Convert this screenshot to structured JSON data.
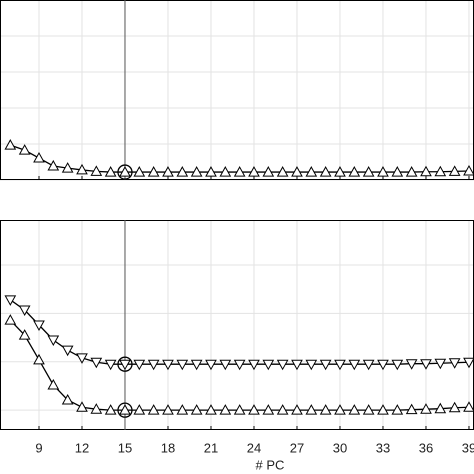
{
  "chart_data": [
    {
      "type": "line",
      "xlim": [
        6.28,
        39.35
      ],
      "ylim": [
        0,
        5
      ],
      "xticks": [
        9,
        12,
        15,
        18,
        21,
        24,
        27,
        30,
        33,
        36,
        39
      ],
      "yticks": [
        0,
        1,
        2,
        3,
        4,
        5
      ],
      "grid": true,
      "show_xtick_labels": false,
      "highlight_x": 15,
      "x": [
        7,
        8,
        9,
        10,
        11,
        12,
        13,
        14,
        15,
        16,
        17,
        18,
        19,
        20,
        21,
        22,
        23,
        24,
        25,
        26,
        27,
        28,
        29,
        30,
        31,
        32,
        33,
        34,
        35,
        36,
        37,
        38,
        39
      ],
      "series": [
        {
          "marker": "triangle-up",
          "color": "#000000",
          "values": [
            0.97,
            0.83,
            0.61,
            0.39,
            0.33,
            0.28,
            0.24,
            0.22,
            0.22,
            0.22,
            0.22,
            0.22,
            0.22,
            0.22,
            0.22,
            0.22,
            0.22,
            0.22,
            0.22,
            0.22,
            0.22,
            0.22,
            0.22,
            0.22,
            0.22,
            0.22,
            0.22,
            0.22,
            0.22,
            0.23,
            0.23,
            0.24,
            0.25
          ]
        }
      ]
    },
    {
      "type": "line",
      "xlim": [
        6.28,
        39.35
      ],
      "ylim": [
        0.59,
        4.93
      ],
      "xticks": [
        9,
        12,
        15,
        18,
        21,
        24,
        27,
        30,
        33,
        36,
        39
      ],
      "yticks": [
        1,
        2,
        3,
        4
      ],
      "grid": true,
      "show_xtick_labels": true,
      "highlight_x": 15,
      "xlabel": "# PC",
      "x": [
        7,
        8,
        9,
        10,
        11,
        12,
        13,
        14,
        15,
        16,
        17,
        18,
        19,
        20,
        21,
        22,
        23,
        24,
        25,
        26,
        27,
        28,
        29,
        30,
        31,
        32,
        33,
        34,
        35,
        36,
        37,
        38,
        39
      ],
      "series": [
        {
          "marker": "triangle-down",
          "color": "#000000",
          "values": [
            3.28,
            3.07,
            2.76,
            2.45,
            2.24,
            2.08,
            1.99,
            1.95,
            1.95,
            1.95,
            1.95,
            1.95,
            1.95,
            1.95,
            1.95,
            1.95,
            1.95,
            1.95,
            1.95,
            1.95,
            1.95,
            1.95,
            1.95,
            1.95,
            1.95,
            1.95,
            1.95,
            1.95,
            1.96,
            1.96,
            1.97,
            1.98,
            1.99
          ]
        },
        {
          "marker": "triangle-up",
          "color": "#000000",
          "values": [
            2.86,
            2.55,
            2.04,
            1.52,
            1.21,
            1.06,
            1.02,
            1.0,
            1.0,
            1.0,
            1.0,
            1.0,
            1.0,
            1.0,
            1.0,
            1.0,
            1.0,
            1.0,
            1.0,
            1.0,
            1.0,
            1.0,
            1.0,
            1.0,
            1.0,
            1.0,
            1.0,
            1.0,
            1.01,
            1.02,
            1.03,
            1.05,
            1.06
          ]
        }
      ]
    }
  ]
}
